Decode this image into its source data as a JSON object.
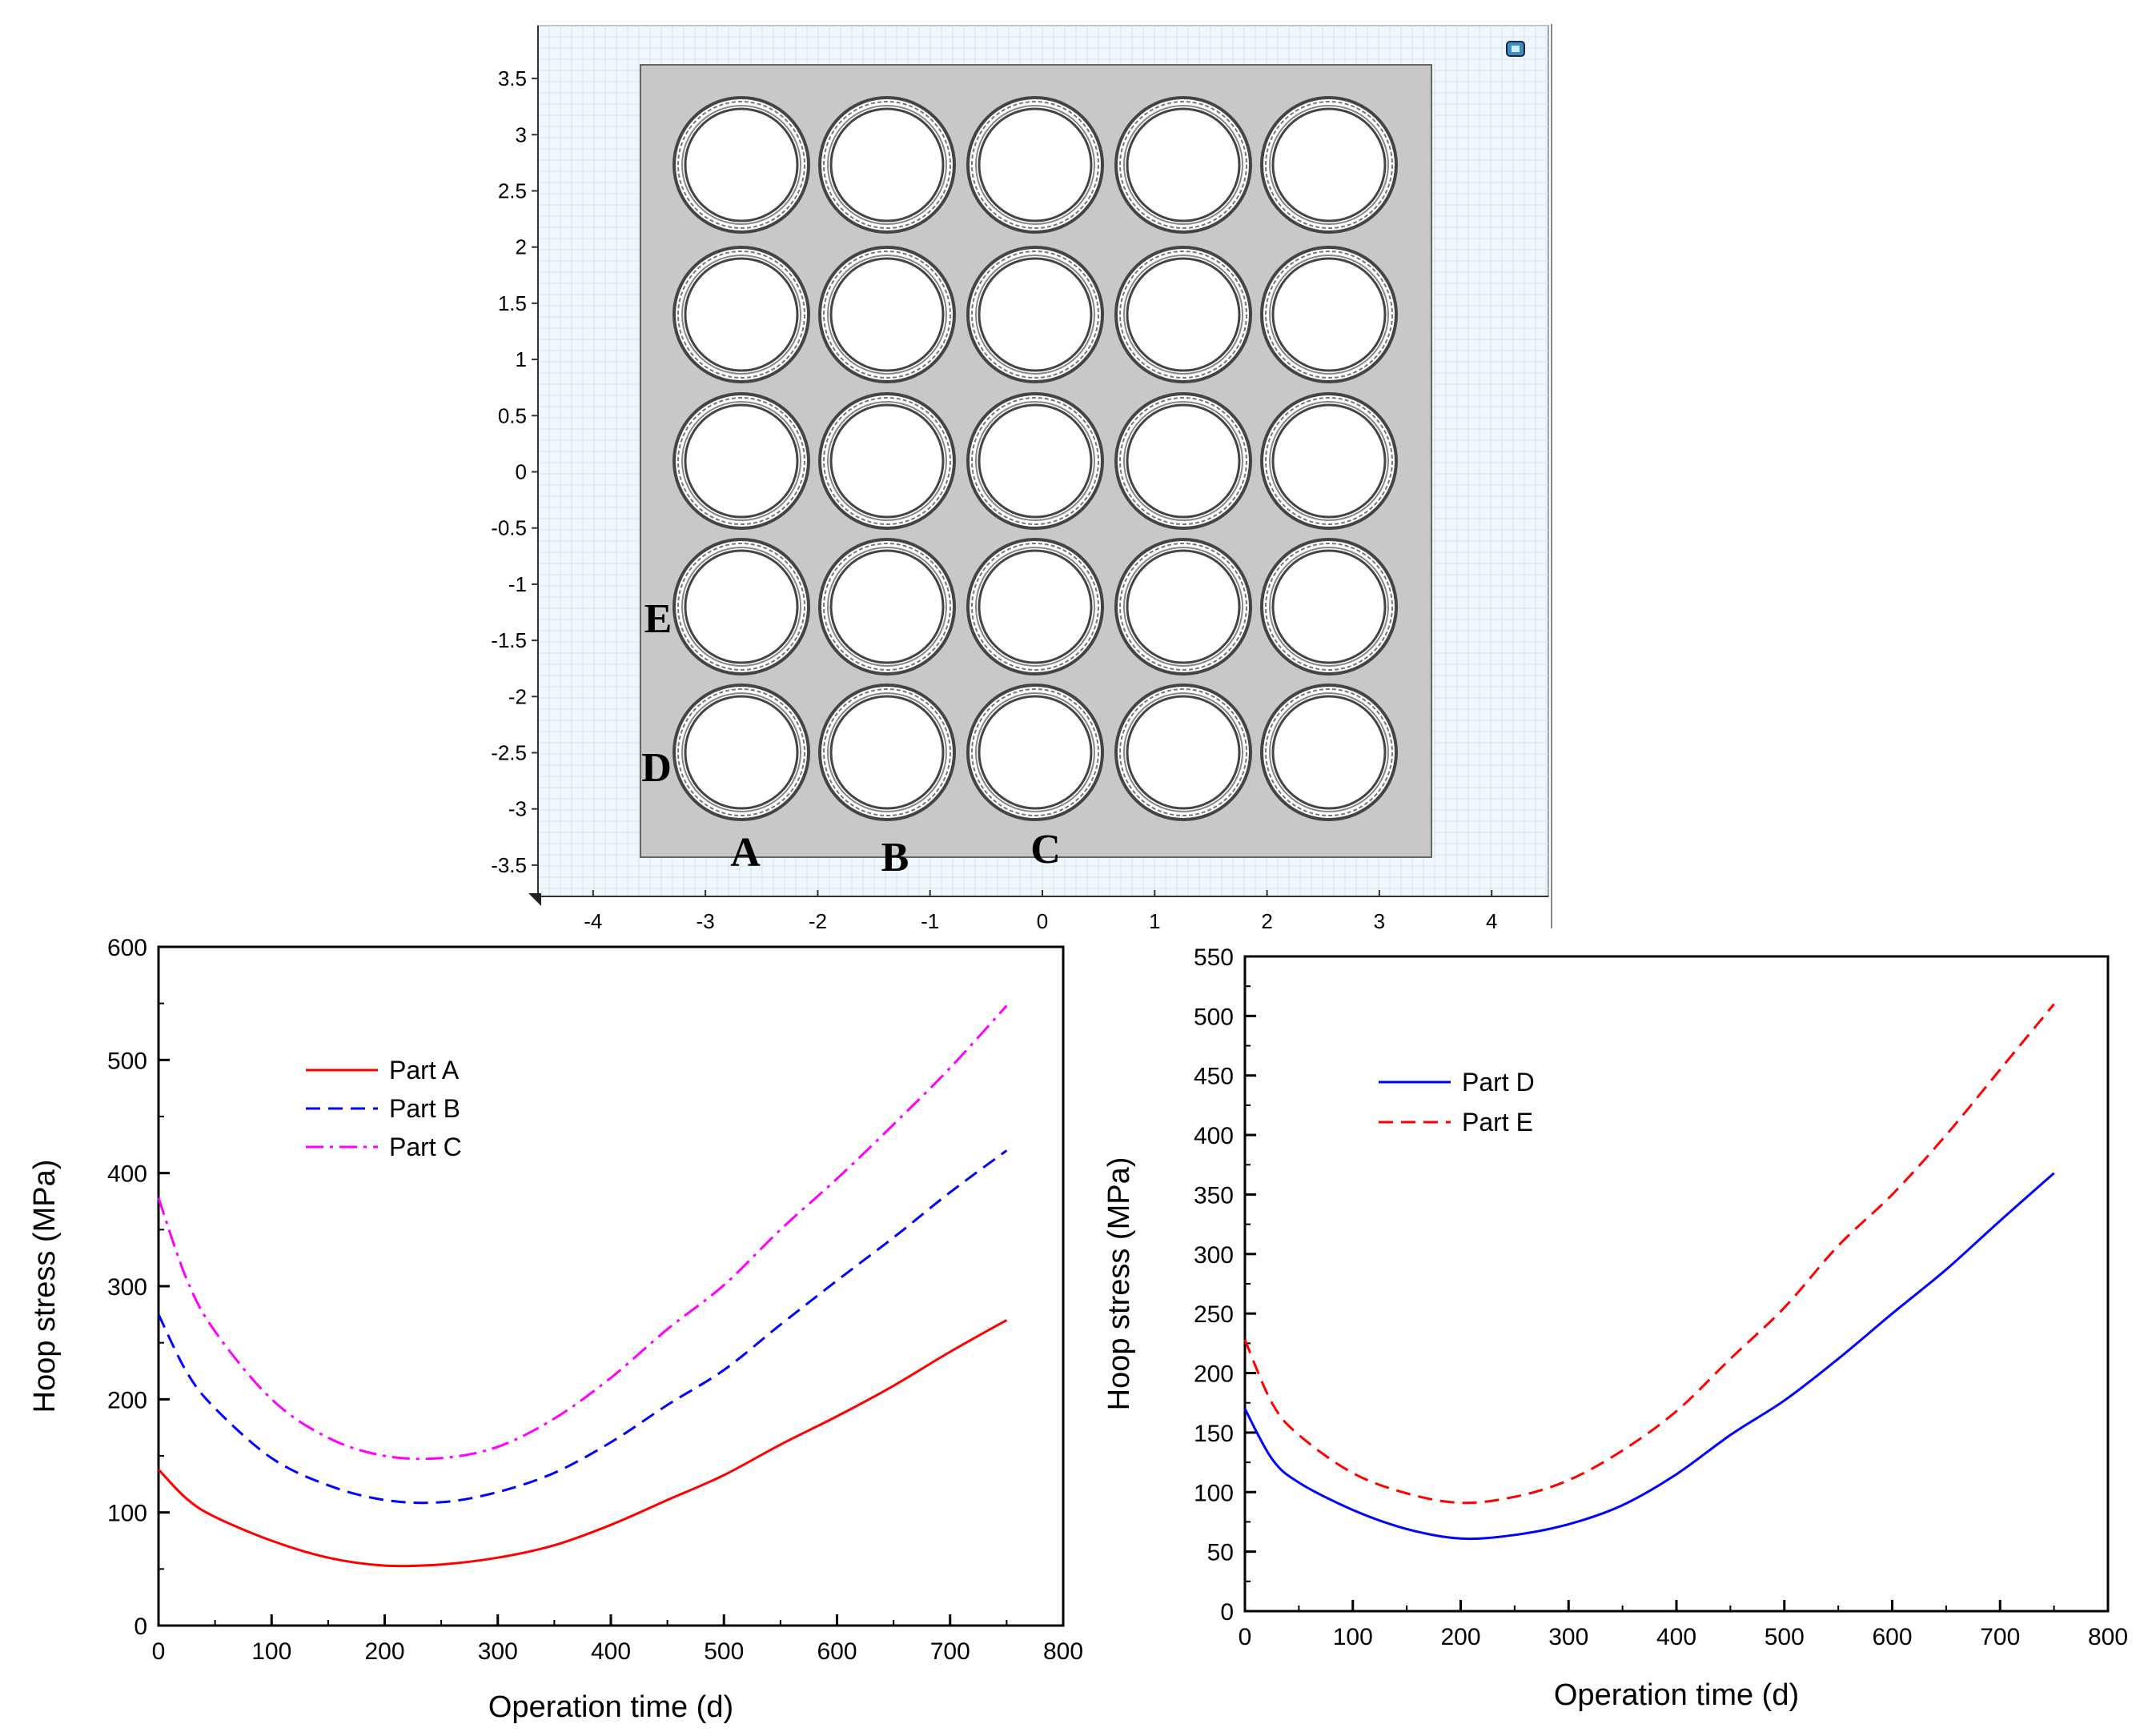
{
  "geometry_view": {
    "x_ticks": [
      "-4",
      "-3",
      "-2",
      "-1",
      "0",
      "1",
      "2",
      "3",
      "4"
    ],
    "y_ticks": [
      "3.5",
      "3",
      "2.5",
      "2",
      "1.5",
      "1",
      "0.5",
      "0",
      "-0.5",
      "-1",
      "-1.5",
      "-2",
      "-2.5",
      "-3",
      "-3.5"
    ],
    "grid_rows": 5,
    "grid_cols": 5,
    "part_labels": [
      {
        "id": "A",
        "text": "A"
      },
      {
        "id": "B",
        "text": "B"
      },
      {
        "id": "C",
        "text": "C"
      },
      {
        "id": "D",
        "text": "D"
      },
      {
        "id": "E",
        "text": "E"
      }
    ],
    "colors": {
      "background": "#f0f8fc",
      "grid": "#cfe6f0",
      "plate": "#c8c8c8",
      "ring": "#444444"
    }
  },
  "chart_data": [
    {
      "type": "line",
      "title": "",
      "xlabel": "Operation time (d)",
      "ylabel": "Hoop stress (MPa)",
      "xlim": [
        0,
        800
      ],
      "ylim": [
        0,
        600
      ],
      "x_ticks": [
        0,
        100,
        200,
        300,
        400,
        500,
        600,
        700,
        800
      ],
      "y_ticks": [
        0,
        100,
        200,
        300,
        400,
        500,
        600
      ],
      "legend_position": "top-left",
      "series": [
        {
          "name": "Part A",
          "color": "#ff0000",
          "dash": "solid",
          "x": [
            0,
            25,
            50,
            100,
            150,
            200,
            250,
            300,
            350,
            400,
            450,
            500,
            550,
            600,
            650,
            700,
            750
          ],
          "y": [
            138,
            112,
            96,
            75,
            60,
            53,
            54,
            60,
            71,
            89,
            111,
            133,
            160,
            185,
            212,
            242,
            270
          ]
        },
        {
          "name": "Part B",
          "color": "#0000ff",
          "dash": "dashed",
          "x": [
            0,
            25,
            50,
            100,
            150,
            200,
            250,
            300,
            350,
            400,
            450,
            500,
            550,
            600,
            650,
            700,
            750
          ],
          "y": [
            275,
            224,
            192,
            148,
            124,
            111,
            109,
            118,
            135,
            162,
            195,
            226,
            266,
            305,
            343,
            383,
            420
          ]
        },
        {
          "name": "Part C",
          "color": "#ff00ff",
          "dash": "dashdot",
          "x": [
            0,
            25,
            50,
            100,
            150,
            200,
            250,
            300,
            350,
            400,
            450,
            500,
            550,
            600,
            650,
            700,
            750
          ],
          "y": [
            378,
            306,
            260,
            200,
            166,
            150,
            148,
            158,
            183,
            219,
            262,
            301,
            350,
            395,
            443,
            493,
            548
          ]
        }
      ]
    },
    {
      "type": "line",
      "title": "",
      "xlabel": "Operation time (d)",
      "ylabel": "Hoop stress (MPa)",
      "xlim": [
        0,
        800
      ],
      "ylim": [
        0,
        550
      ],
      "x_ticks": [
        0,
        100,
        200,
        300,
        400,
        500,
        600,
        700,
        800
      ],
      "y_ticks": [
        0,
        50,
        100,
        150,
        200,
        250,
        300,
        350,
        400,
        450,
        500,
        550
      ],
      "legend_position": "top-left",
      "series": [
        {
          "name": "Part D",
          "color": "#0000ff",
          "dash": "solid",
          "x": [
            0,
            25,
            50,
            100,
            150,
            200,
            250,
            300,
            350,
            400,
            450,
            500,
            550,
            600,
            650,
            700,
            750
          ],
          "y": [
            170,
            128,
            108,
            85,
            69,
            61,
            64,
            73,
            89,
            115,
            148,
            177,
            212,
            250,
            287,
            328,
            368
          ]
        },
        {
          "name": "Part E",
          "color": "#ff0000",
          "dash": "dashed",
          "x": [
            0,
            25,
            50,
            100,
            150,
            200,
            250,
            300,
            350,
            400,
            450,
            500,
            550,
            600,
            650,
            700,
            750
          ],
          "y": [
            228,
            175,
            148,
            116,
            99,
            91,
            96,
            110,
            135,
            168,
            212,
            255,
            307,
            350,
            400,
            455,
            510
          ]
        }
      ]
    }
  ]
}
